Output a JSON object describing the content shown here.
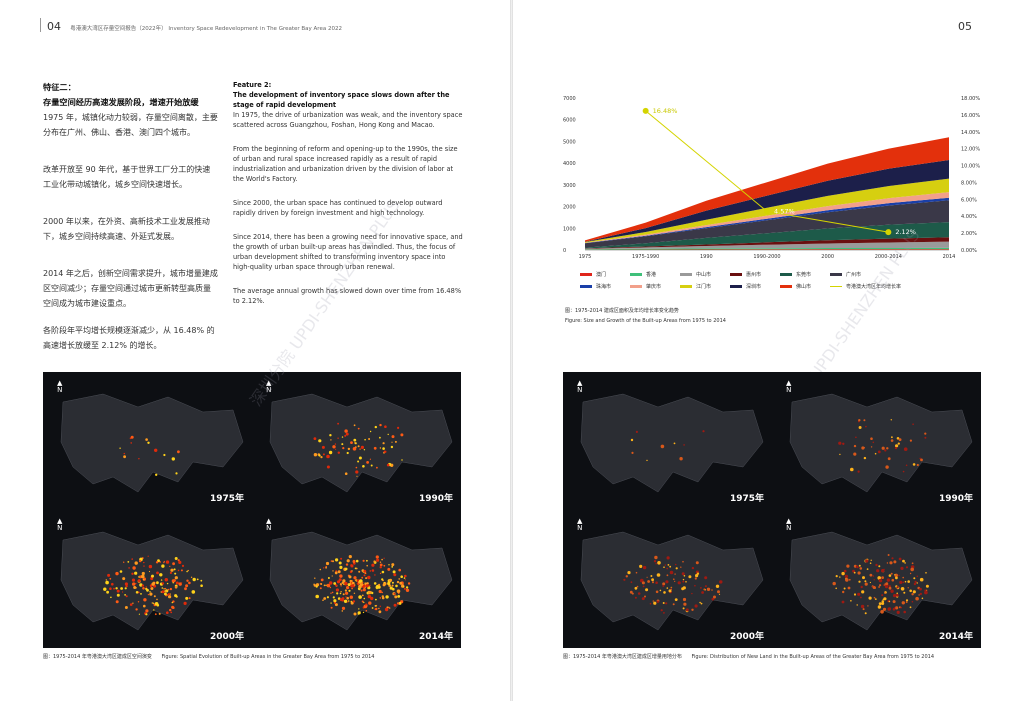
{
  "left": {
    "page_number": "04",
    "running_title": "粤港澳大湾区存量空间报告（2022年） Inventory Space Redevelopment in The Greater Bay Area 2022",
    "cn": {
      "heading1": "特征二：",
      "heading2": "存量空间经历高速发展阶段，增速开始放缓",
      "paragraphs": [
        "1975 年，城镇化动力较弱，存量空间离散，主要分布在广州、佛山、香港、澳门四个城市。",
        "改革开放至 90 年代，基于世界工厂分工的快速工业化带动城镇化，城乡空间快速增长。",
        "2000 年以来，在外资、高新技术工业发展推动下，城乡空间持续高速、外延式发展。",
        "2014 年之后，创新空间需求提升，城市增量建成区空间减少；存量空间通过城市更新转型高质量空间成为城市建设重点。",
        "各阶段年平均增长规模逐渐减少，从 16.48% 的高速增长放缓至 2.12% 的增长。"
      ]
    },
    "en": {
      "heading1": "Feature 2:",
      "heading2": "The development of inventory space slows down after the stage of rapid development",
      "paragraphs": [
        "In 1975, the drive of urbanization was weak, and the inventory space scattered across Guangzhou, Foshan, Hong Kong and Macao.",
        "From the beginning of reform and opening-up to the 1990s, the size of urban and rural space increased rapidly as a result of rapid industrialization and urbanization driven by the division of labor at the World's Factory.",
        "Since 2000, the urban space has continued to develop outward rapidly driven by foreign investment and high technology.",
        "Since 2014, there has been a growing need for innovative space, and the growth of urban built-up areas has dwindled. Thus, the focus of urban development shifted to transforming inventory space into high-quality urban space through urban renewal.",
        "The average annual growth has slowed down over time from 16.48% to 2.12%."
      ]
    },
    "maps": [
      {
        "year": "1975年"
      },
      {
        "year": "1990年"
      },
      {
        "year": "2000年"
      },
      {
        "year": "2014年"
      }
    ],
    "caption_cn": "图：1975-2014 年粤港澳大湾区建成区空间演变",
    "caption_en": "Figure: Spatial Evolution of Built-up Areas in the Greater Bay Area from 1975 to 2014"
  },
  "right": {
    "page_number": "05",
    "maps": [
      {
        "year": "1975年"
      },
      {
        "year": "1990年"
      },
      {
        "year": "2000年"
      },
      {
        "year": "2014年"
      }
    ],
    "caption_cn": "图：1975-2014 年粤港澳大湾区建成区增量用地分布",
    "caption_en": "Figure: Distribution of New Land in the Built-up Areas of the Greater Bay Area from 1975 to 2014",
    "chart_caption_cn": "图：1975-2014 建成区面积及年均增长率变化趋势",
    "chart_caption_en": "Figure: Size and Growth of the Built-up Areas from 1975 to 2014",
    "watermark": "深圳分院 UPDI-SHENZHEN PLUS"
  },
  "chart_data": {
    "type": "area",
    "stacked": true,
    "x": [
      "1975",
      "1975-1990",
      "1990",
      "1990-2000",
      "2000",
      "2000-2014",
      "2014"
    ],
    "ylim": [
      0,
      7000
    ],
    "yticks": [
      "0",
      "1000",
      "2000",
      "3000",
      "4000",
      "5000",
      "6000",
      "7000"
    ],
    "y2lim": [
      0,
      18
    ],
    "y2ticks": [
      "0.00%",
      "2.00%",
      "4.00%",
      "6.00%",
      "8.00%",
      "10.00%",
      "12.00%",
      "14.00%",
      "16.00%",
      "18.00%"
    ],
    "legend_position": "bottom",
    "series": [
      {
        "name": "澳门",
        "color": "#e0251b",
        "values": [
          12,
          20,
          25,
          28,
          30,
          32,
          33
        ]
      },
      {
        "name": "香港",
        "color": "#3fc07a",
        "values": [
          25,
          40,
          50,
          55,
          60,
          62,
          64
        ]
      },
      {
        "name": "中山市",
        "color": "#9a9a9a",
        "values": [
          20,
          60,
          110,
          160,
          210,
          250,
          290
        ]
      },
      {
        "name": "惠州市",
        "color": "#6a0f0f",
        "values": [
          15,
          40,
          70,
          110,
          150,
          180,
          200
        ]
      },
      {
        "name": "东莞市",
        "color": "#1d5a49",
        "values": [
          40,
          150,
          300,
          420,
          540,
          640,
          700
        ]
      },
      {
        "name": "广州市",
        "color": "#3a3848",
        "values": [
          200,
          320,
          450,
          600,
          750,
          880,
          1000
        ]
      },
      {
        "name": "珠海市",
        "color": "#1a3fa8",
        "values": [
          10,
          30,
          50,
          70,
          90,
          110,
          120
        ]
      },
      {
        "name": "肇庆市",
        "color": "#f2a08a",
        "values": [
          15,
          50,
          90,
          140,
          190,
          230,
          260
        ]
      },
      {
        "name": "江门市",
        "color": "#d6cf10",
        "values": [
          30,
          120,
          250,
          360,
          470,
          560,
          620
        ]
      },
      {
        "name": "深圳市",
        "color": "#1c1f4a",
        "values": [
          15,
          180,
          420,
          560,
          700,
          800,
          860
        ]
      },
      {
        "name": "佛山市",
        "color": "#e3300c",
        "values": [
          60,
          250,
          450,
          620,
          790,
          920,
          1050
        ]
      }
    ],
    "growth_line": {
      "name": "粤港澳大湾区年均增长率",
      "color": "#d4d400",
      "points": [
        {
          "x": "1975-1990",
          "value": 16.48,
          "label": "16.48%"
        },
        {
          "x": "1990-2000",
          "value": 4.57,
          "label": "4.57%"
        },
        {
          "x": "2000-2014",
          "value": 2.12,
          "label": "2.12%"
        }
      ]
    }
  }
}
